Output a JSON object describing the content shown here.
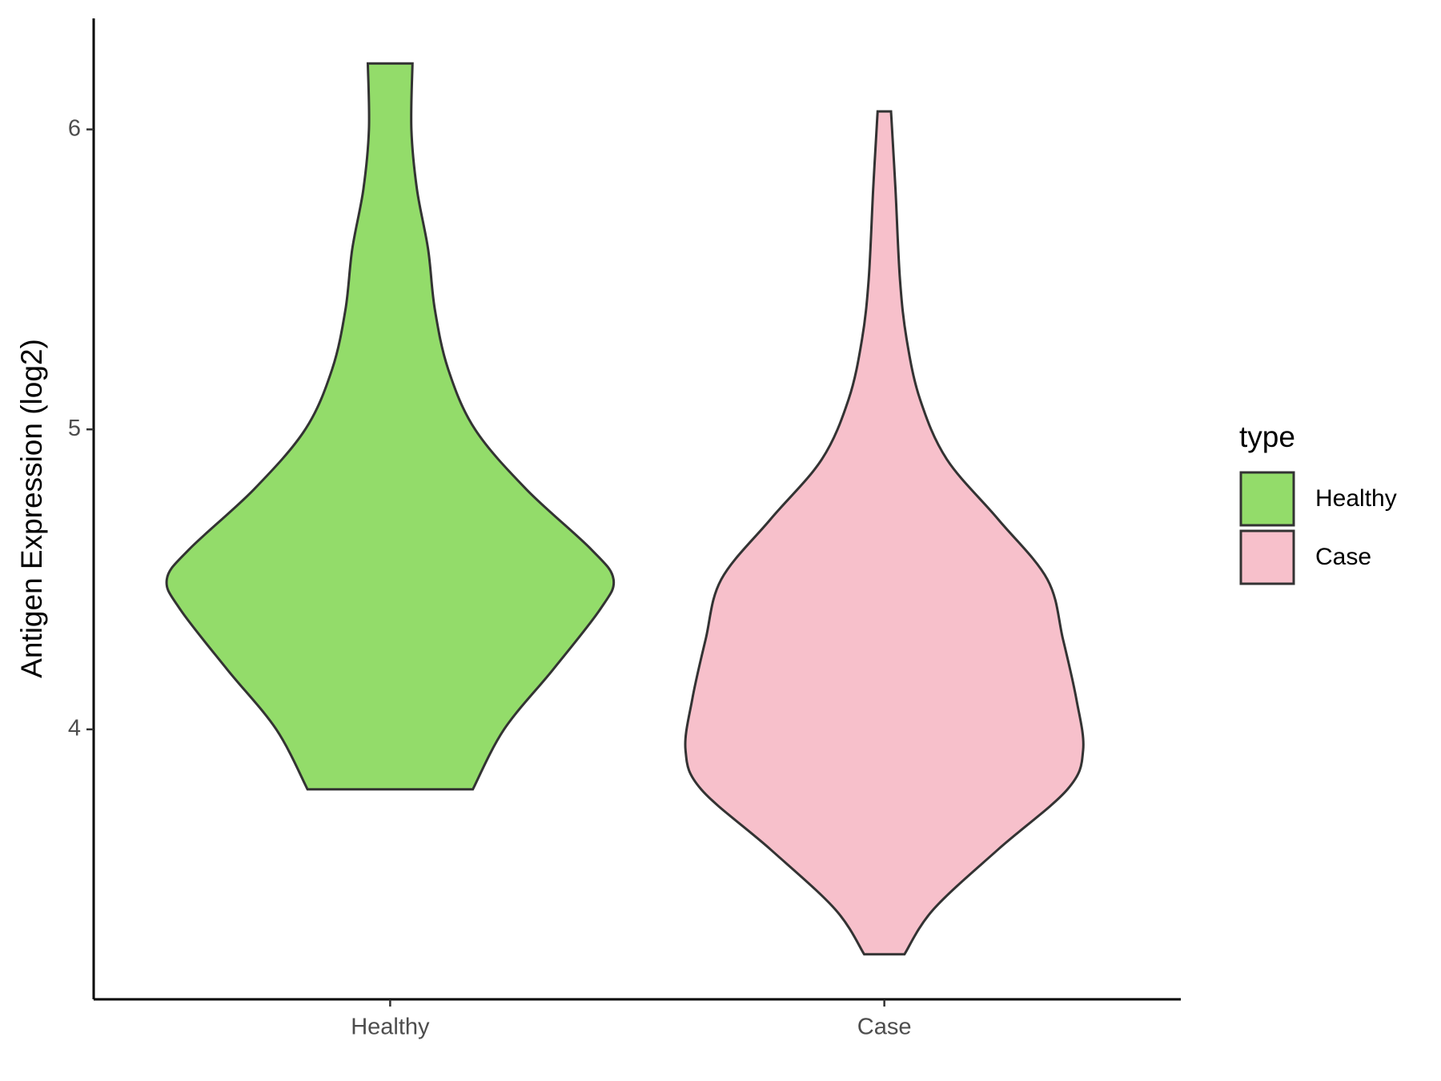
{
  "chart_data": {
    "type": "violin",
    "y_label": "Antigen Expression (log2)",
    "categories": [
      "Healthy",
      "Case"
    ],
    "legend_title": "type",
    "legend_position": "right",
    "ylim": [
      3.1,
      6.37
    ],
    "yticks": [
      4,
      5,
      6
    ],
    "series": [
      {
        "name": "Healthy",
        "color": "#93dc6a",
        "y": [
          3.8,
          4.0,
          4.2,
          4.4,
          4.5,
          4.6,
          4.8,
          5.0,
          5.2,
          5.4,
          5.6,
          5.8,
          6.0,
          6.22
        ],
        "density": [
          0.37,
          0.51,
          0.73,
          0.94,
          1.0,
          0.9,
          0.61,
          0.38,
          0.26,
          0.2,
          0.17,
          0.12,
          0.095,
          0.1
        ]
      },
      {
        "name": "Case",
        "color": "#f7c0cb",
        "y": [
          3.25,
          3.4,
          3.6,
          3.8,
          3.93,
          4.1,
          4.3,
          4.5,
          4.7,
          4.9,
          5.1,
          5.3,
          5.5,
          5.8,
          6.06
        ],
        "density": [
          0.09,
          0.22,
          0.51,
          0.82,
          0.89,
          0.86,
          0.8,
          0.73,
          0.51,
          0.28,
          0.16,
          0.1,
          0.07,
          0.05,
          0.03
        ]
      }
    ]
  }
}
